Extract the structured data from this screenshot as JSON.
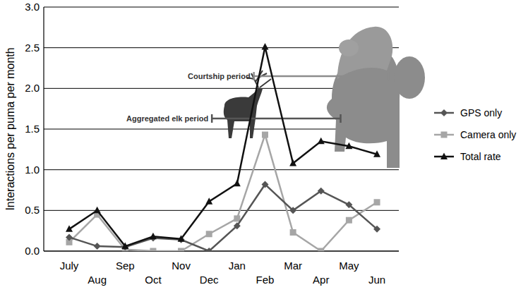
{
  "chart_data": {
    "type": "line",
    "y_label": "Interactions per puma per month",
    "categories": [
      "July",
      "Aug",
      "Sep",
      "Oct",
      "Nov",
      "Dec",
      "Jan",
      "Feb",
      "Mar",
      "Apr",
      "May",
      "Jun"
    ],
    "series": [
      {
        "name": "GPS only",
        "color": "#555555",
        "marker": "diamond",
        "values": [
          0.17,
          0.06,
          0.05,
          0.16,
          0.14,
          0.0,
          0.31,
          0.82,
          0.5,
          0.74,
          0.57,
          0.27
        ]
      },
      {
        "name": "Camera only",
        "color": "#a6a6a6",
        "marker": "square",
        "values": [
          0.11,
          0.45,
          0.02,
          0.0,
          0.0,
          0.21,
          0.4,
          1.43,
          0.23,
          0.0,
          0.38,
          0.6
        ]
      },
      {
        "name": "Total rate",
        "color": "#111111",
        "marker": "triangle",
        "values": [
          0.27,
          0.5,
          0.06,
          0.18,
          0.15,
          0.61,
          0.83,
          2.51,
          1.08,
          1.35,
          1.29,
          1.19
        ]
      }
    ],
    "ylim": [
      0,
      3
    ],
    "yticks": [
      {
        "value": 0,
        "label": "0.0"
      },
      {
        "value": 0.5,
        "label": "0.5"
      },
      {
        "value": 1,
        "label": "1.0"
      },
      {
        "value": 1.5,
        "label": "1.5"
      },
      {
        "value": 2,
        "label": "2.0"
      },
      {
        "value": 2.5,
        "label": "2.5"
      },
      {
        "value": 3,
        "label": "3.0"
      }
    ],
    "grid": true,
    "legend": "right",
    "annotations": [
      {
        "text": "Courtship period",
        "start": 6.6,
        "end": 11.4,
        "y": 2.15
      },
      {
        "text": "Aggregated elk period",
        "start": 5.1,
        "end": 9.7,
        "y": 1.63
      }
    ]
  }
}
